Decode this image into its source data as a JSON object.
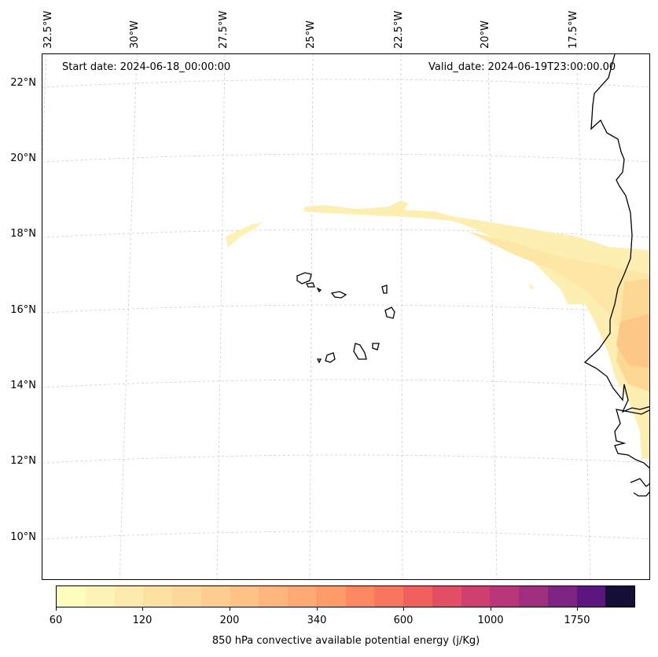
{
  "map": {
    "start_date": "Start date: 2024-06-18_00:00:00",
    "valid_date": "Valid_date: 2024-06-19T23:00:00.00",
    "lon_labels": [
      "32.5°W",
      "30°W",
      "27.5°W",
      "25°W",
      "22.5°W",
      "20°W",
      "17.5°W"
    ],
    "lat_labels": [
      "22°N",
      "20°N",
      "18°N",
      "16°N",
      "14°N",
      "12°N",
      "10°N"
    ]
  },
  "colorbar": {
    "label": "850 hPa convective available potential energy (j/Kg)",
    "ticks": [
      "60",
      "120",
      "200",
      "340",
      "600",
      "1000",
      "1750"
    ],
    "colors": [
      "#fcfdbf",
      "#fcf4b6",
      "#fcebac",
      "#fde1a2",
      "#fdd89a",
      "#fdcd90",
      "#fec287",
      "#feb67c",
      "#fea973",
      "#fe9c69",
      "#fb8861",
      "#f8765c",
      "#f1605d",
      "#e34e65",
      "#cf4070",
      "#b8377a",
      "#9f2f7f",
      "#7e2482",
      "#5c167f",
      "#150e37"
    ]
  }
}
